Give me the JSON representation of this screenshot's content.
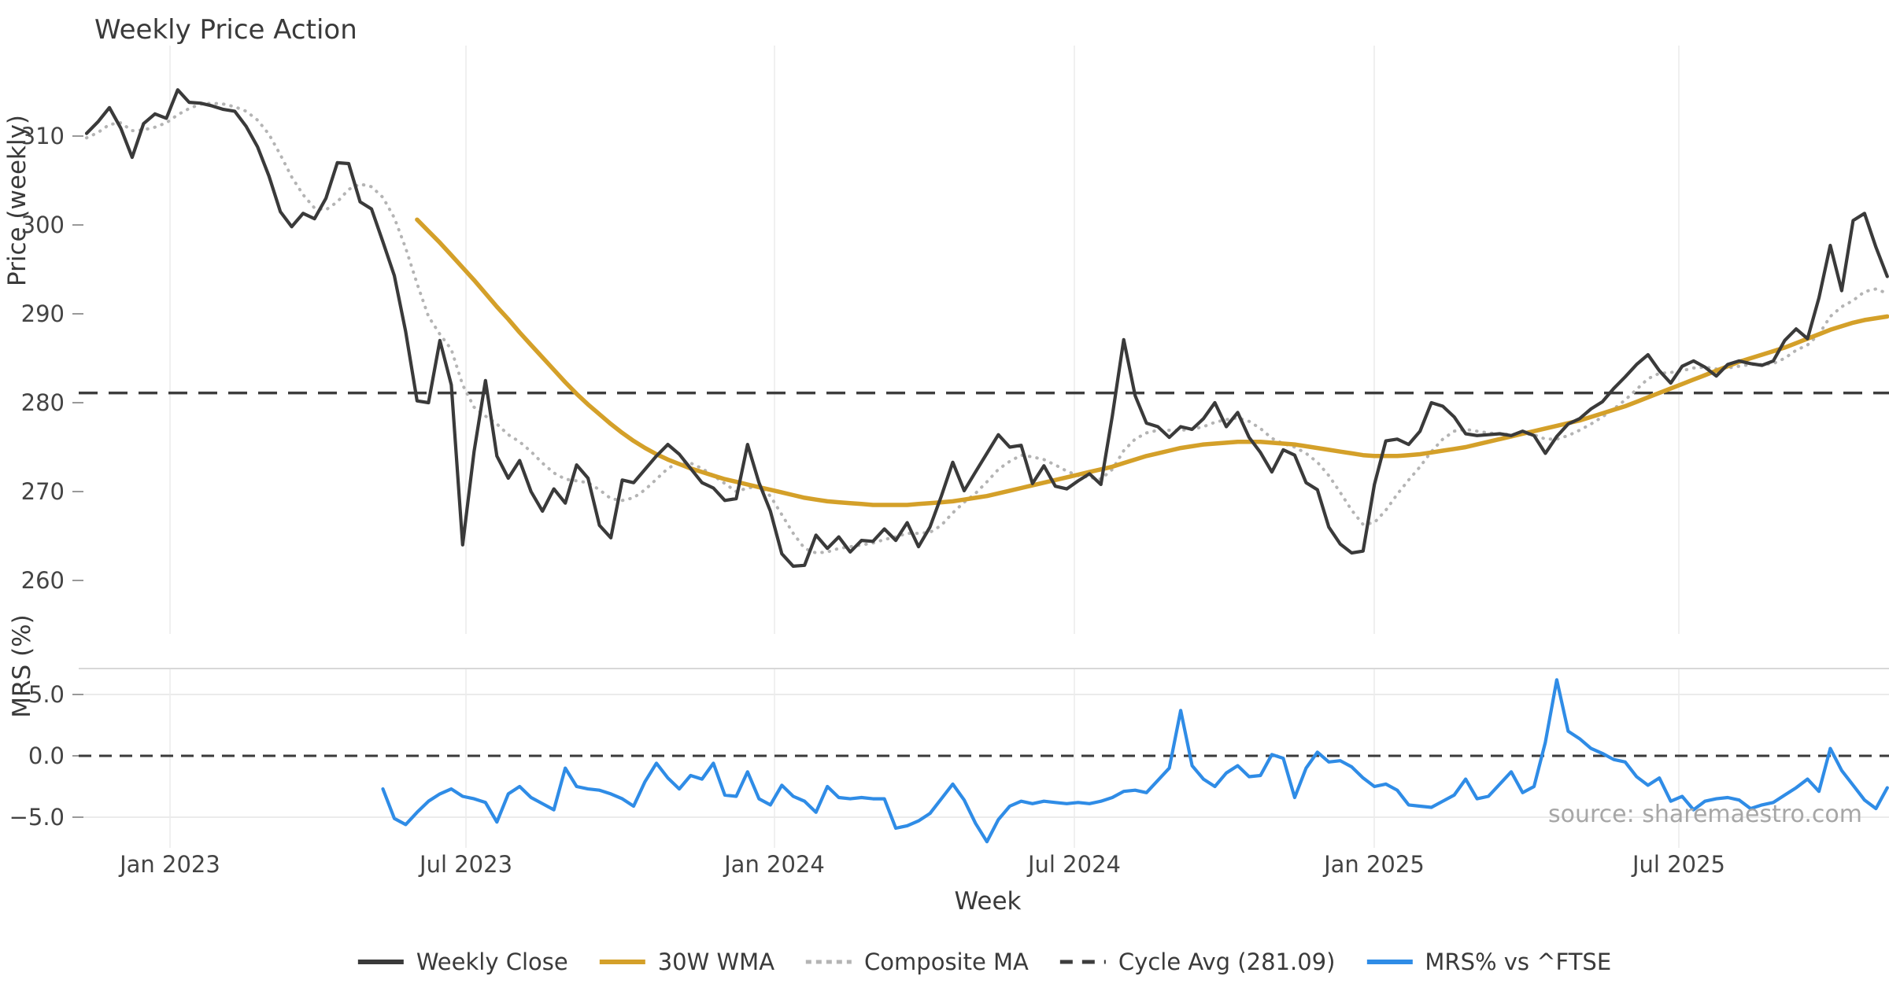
{
  "title": "Weekly Price Action",
  "source_note": "source: sharemaestro.com",
  "colors": {
    "weekly_close": "#3a3a3a",
    "wma30": "#d4a029",
    "composite_ma": "#b4b4b4",
    "cycle_avg": "#3d3d3d",
    "mrs": "#2f8ce6",
    "grid_vertical": "#f0f0f0",
    "grid_horizontal": "#ebebeb",
    "panel_border": "#d8d8d8",
    "tick": "#999999"
  },
  "chart_data": {
    "type": "line",
    "title": "Weekly Price Action",
    "xlabel": "Week",
    "x_unit": "weeks (one point per week, index 0 = mid-Nov 2022)",
    "n_points": 159,
    "x_tick_labels": [
      "Jan 2023",
      "Jul 2023",
      "Jan 2024",
      "Jul 2024",
      "Jan 2025",
      "Jul 2025"
    ],
    "x_tick_weeks": [
      7.32,
      33.29,
      60.36,
      86.67,
      112.98,
      139.71
    ],
    "grid": "faint vertical month gridlines; legend bottom center",
    "panels": [
      {
        "name": "price",
        "ylabel": "Price (weekly)",
        "ylim": [
          254,
          320
        ],
        "yticks": [
          310,
          300,
          290,
          280,
          270,
          260
        ],
        "cycle_avg_value": 281.09,
        "series": [
          {
            "name": "Weekly Close",
            "style": "solid",
            "color": "#3a3a3a",
            "values": [
              310.3,
              311.6,
              313.2,
              310.9,
              307.6,
              311.4,
              312.5,
              312.0,
              315.2,
              313.8,
              313.7,
              313.4,
              313.0,
              312.8,
              311.1,
              308.8,
              305.5,
              301.5,
              299.8,
              301.3,
              300.7,
              303.0,
              307.0,
              306.9,
              302.6,
              301.8,
              298.1,
              294.3,
              288.0,
              280.2,
              280.0,
              287.0,
              282.0,
              264.0,
              274.5,
              282.5,
              274.0,
              271.5,
              273.5,
              270.0,
              267.8,
              270.3,
              268.7,
              273.0,
              271.5,
              266.2,
              264.8,
              271.3,
              271.0,
              272.5,
              274.0,
              275.3,
              274.2,
              272.6,
              271.0,
              270.4,
              269.0,
              269.2,
              275.3,
              271.0,
              267.8,
              263.0,
              261.6,
              261.7,
              265.1,
              263.6,
              264.9,
              263.2,
              264.5,
              264.4,
              265.8,
              264.5,
              266.5,
              263.8,
              266.0,
              269.5,
              273.3,
              270.1,
              272.2,
              274.3,
              276.4,
              275.0,
              275.2,
              270.9,
              272.9,
              270.6,
              270.3,
              271.2,
              272.0,
              270.8,
              278.5,
              287.1,
              280.8,
              277.7,
              277.3,
              276.1,
              277.3,
              277.0,
              278.2,
              280.0,
              277.3,
              278.9,
              276.1,
              274.4,
              272.2,
              274.7,
              274.1,
              271.0,
              270.2,
              266.0,
              264.1,
              263.1,
              263.3,
              270.8,
              275.7,
              275.9,
              275.3,
              276.8,
              280.0,
              279.6,
              278.4,
              276.5,
              276.3,
              276.4,
              276.5,
              276.3,
              276.8,
              276.3,
              274.3,
              276.2,
              277.6,
              278.2,
              279.3,
              280.1,
              281.6,
              282.9,
              284.3,
              285.4,
              283.6,
              282.2,
              284.1,
              284.7,
              284.0,
              283.0,
              284.3,
              284.7,
              284.4,
              284.2,
              284.7,
              287.0,
              288.3,
              287.2,
              291.8,
              297.7,
              292.6,
              300.5,
              301.3,
              297.5,
              294.2
            ]
          },
          {
            "name": "30W WMA",
            "style": "solid",
            "color": "#d4a029",
            "values": [
              null,
              null,
              null,
              null,
              null,
              null,
              null,
              null,
              null,
              null,
              null,
              null,
              null,
              null,
              null,
              null,
              null,
              null,
              null,
              null,
              null,
              null,
              null,
              null,
              null,
              null,
              null,
              null,
              null,
              300.6,
              299.3,
              298.0,
              296.6,
              295.2,
              293.8,
              292.3,
              290.8,
              289.4,
              287.9,
              286.5,
              285.1,
              283.7,
              282.3,
              281.0,
              279.8,
              278.7,
              277.6,
              276.6,
              275.7,
              274.9,
              274.2,
              273.6,
              273.1,
              272.6,
              272.2,
              271.8,
              271.4,
              271.1,
              270.8,
              270.5,
              270.2,
              269.9,
              269.6,
              269.3,
              269.1,
              268.9,
              268.8,
              268.7,
              268.6,
              268.5,
              268.5,
              268.5,
              268.5,
              268.6,
              268.7,
              268.8,
              268.9,
              269.1,
              269.3,
              269.5,
              269.8,
              270.1,
              270.4,
              270.7,
              271.0,
              271.3,
              271.6,
              271.9,
              272.2,
              272.5,
              272.8,
              273.2,
              273.6,
              274.0,
              274.3,
              274.6,
              274.9,
              275.1,
              275.3,
              275.4,
              275.5,
              275.6,
              275.6,
              275.6,
              275.5,
              275.4,
              275.3,
              275.1,
              274.9,
              274.7,
              274.5,
              274.3,
              274.1,
              274.0,
              274.0,
              274.0,
              274.1,
              274.2,
              274.4,
              274.6,
              274.8,
              275.0,
              275.3,
              275.6,
              275.9,
              276.2,
              276.5,
              276.8,
              277.1,
              277.4,
              277.7,
              278.0,
              278.4,
              278.8,
              279.2,
              279.6,
              280.1,
              280.6,
              281.1,
              281.6,
              282.1,
              282.6,
              283.1,
              283.6,
              284.1,
              284.6,
              285.0,
              285.4,
              285.8,
              286.2,
              286.7,
              287.2,
              287.7,
              288.2,
              288.6,
              289.0,
              289.3,
              289.5,
              289.7
            ]
          },
          {
            "name": "Composite MA",
            "style": "dotted",
            "color": "#b4b4b4",
            "values": [
              309.8,
              310.4,
              311.3,
              311.5,
              310.6,
              310.7,
              311.0,
              311.5,
              312.4,
              313.1,
              313.6,
              313.7,
              313.6,
              313.3,
              312.8,
              311.8,
              310.2,
              307.9,
              305.4,
              303.4,
              301.9,
              301.7,
              302.6,
              304.0,
              304.6,
              304.3,
              303.1,
              300.8,
              297.4,
              293.4,
              289.7,
              287.7,
              286.0,
              282.0,
              279.5,
              278.5,
              277.6,
              276.4,
              275.6,
              274.5,
              273.2,
              272.1,
              271.4,
              271.2,
              271.0,
              270.2,
              269.2,
              269.0,
              269.3,
              270.2,
              271.4,
              272.6,
              273.3,
              273.2,
              272.6,
              271.8,
              270.9,
              270.0,
              270.4,
              270.6,
              269.5,
              267.4,
              265.3,
              263.6,
              263.1,
              263.2,
              263.6,
              263.8,
              264.0,
              264.2,
              264.6,
              264.9,
              265.3,
              265.3,
              265.4,
              266.2,
              267.6,
              268.8,
              269.8,
              271.1,
              272.5,
              273.4,
              274.1,
              273.9,
              273.6,
              273.0,
              272.3,
              271.8,
              271.6,
              271.4,
              272.5,
              274.6,
              275.9,
              276.6,
              276.9,
              276.9,
              276.9,
              277.0,
              277.3,
              277.8,
              278.1,
              278.3,
              277.9,
              277.1,
              276.0,
              275.4,
              275.0,
              274.3,
              273.3,
              271.8,
              269.9,
              267.9,
              266.3,
              266.5,
              267.9,
              269.7,
              271.3,
              272.8,
              274.5,
              275.9,
              276.8,
              277.0,
              276.8,
              276.6,
              276.5,
              276.4,
              276.5,
              276.4,
              275.9,
              275.9,
              276.3,
              276.9,
              277.6,
              278.4,
              279.3,
              280.3,
              281.5,
              282.7,
              283.3,
              283.4,
              283.6,
              283.9,
              284.0,
              283.8,
              283.9,
              284.1,
              284.3,
              284.3,
              284.4,
              285.0,
              285.9,
              286.5,
              287.7,
              289.7,
              290.8,
              291.5,
              292.5,
              292.8,
              292.3
            ]
          },
          {
            "name": "Cycle Avg (281.09)",
            "style": "dashed",
            "color": "#3d3d3d",
            "constant": 281.09
          }
        ]
      },
      {
        "name": "mrs",
        "ylabel": "MRS (%)",
        "ylim": [
          -7.5,
          7.1
        ],
        "yticks": [
          5.0,
          0.0,
          -5.0
        ],
        "ytick_labels": [
          "5.0",
          "0.0",
          "−5.0"
        ],
        "zero_line_dashed": true,
        "series": [
          {
            "name": "MRS% vs ^FTSE",
            "style": "solid",
            "color": "#2f8ce6",
            "values": [
              null,
              null,
              null,
              null,
              null,
              null,
              null,
              null,
              null,
              null,
              null,
              null,
              null,
              null,
              null,
              null,
              null,
              null,
              null,
              null,
              null,
              null,
              null,
              null,
              null,
              null,
              -2.7,
              -5.1,
              -5.6,
              -4.6,
              -3.7,
              -3.1,
              -2.7,
              -3.3,
              -3.5,
              -3.8,
              -5.4,
              -3.1,
              -2.5,
              -3.4,
              -3.9,
              -4.4,
              -1.0,
              -2.5,
              -2.7,
              -2.8,
              -3.1,
              -3.5,
              -4.1,
              -2.1,
              -0.6,
              -1.8,
              -2.7,
              -1.6,
              -1.9,
              -0.6,
              -3.2,
              -3.3,
              -1.3,
              -3.5,
              -4.0,
              -2.4,
              -3.3,
              -3.7,
              -4.6,
              -2.5,
              -3.4,
              -3.5,
              -3.4,
              -3.5,
              -3.5,
              -5.9,
              -5.7,
              -5.3,
              -4.7,
              -3.5,
              -2.3,
              -3.6,
              -5.5,
              -7.0,
              -5.2,
              -4.1,
              -3.7,
              -3.9,
              -3.7,
              -3.8,
              -3.9,
              -3.8,
              -3.9,
              -3.7,
              -3.4,
              -2.9,
              -2.8,
              -3.0,
              -2.0,
              -1.0,
              3.7,
              -0.8,
              -1.9,
              -2.5,
              -1.4,
              -0.8,
              -1.7,
              -1.6,
              0.1,
              -0.2,
              -3.4,
              -1.0,
              0.3,
              -0.5,
              -0.4,
              -0.9,
              -1.8,
              -2.5,
              -2.3,
              -2.8,
              -4.0,
              -4.1,
              -4.2,
              -3.7,
              -3.2,
              -1.9,
              -3.5,
              -3.3,
              -2.3,
              -1.3,
              -3.0,
              -2.5,
              1.1,
              6.2,
              2.0,
              1.4,
              0.6,
              0.2,
              -0.3,
              -0.5,
              -1.7,
              -2.4,
              -1.8,
              -3.7,
              -3.3,
              -4.4,
              -3.7,
              -3.5,
              -3.4,
              -3.6,
              -4.3,
              -4.0,
              -3.8,
              -3.2,
              -2.6,
              -1.9,
              -2.9,
              0.6,
              -1.2,
              -2.4,
              -3.6,
              -4.3,
              -2.6
            ]
          }
        ]
      }
    ],
    "legend": [
      {
        "label": "Weekly Close",
        "style": "solid",
        "color": "#3a3a3a"
      },
      {
        "label": "30W WMA",
        "style": "solid",
        "color": "#d4a029"
      },
      {
        "label": "Composite MA",
        "style": "dotted",
        "color": "#b4b4b4"
      },
      {
        "label": "Cycle Avg (281.09)",
        "style": "dashed",
        "color": "#3d3d3d"
      },
      {
        "label": "MRS% vs ^FTSE",
        "style": "solid",
        "color": "#2f8ce6"
      }
    ]
  }
}
